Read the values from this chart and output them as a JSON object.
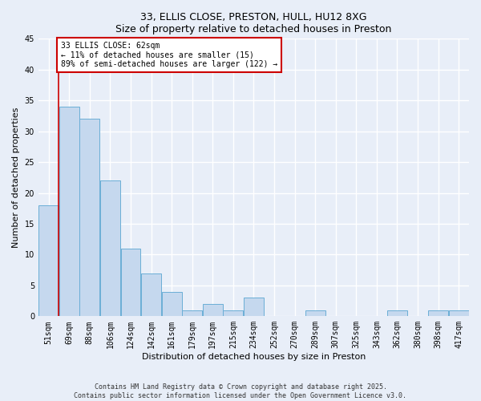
{
  "title1": "33, ELLIS CLOSE, PRESTON, HULL, HU12 8XG",
  "title2": "Size of property relative to detached houses in Preston",
  "xlabel": "Distribution of detached houses by size in Preston",
  "ylabel": "Number of detached properties",
  "categories": [
    "51sqm",
    "69sqm",
    "88sqm",
    "106sqm",
    "124sqm",
    "142sqm",
    "161sqm",
    "179sqm",
    "197sqm",
    "215sqm",
    "234sqm",
    "252sqm",
    "270sqm",
    "289sqm",
    "307sqm",
    "325sqm",
    "343sqm",
    "362sqm",
    "380sqm",
    "398sqm",
    "417sqm"
  ],
  "values": [
    18,
    34,
    32,
    22,
    11,
    7,
    4,
    1,
    2,
    1,
    3,
    0,
    0,
    1,
    0,
    0,
    0,
    1,
    0,
    1,
    1
  ],
  "bar_color": "#c5d8ee",
  "bar_edgecolor": "#6aaed6",
  "ylim": [
    0,
    45
  ],
  "yticks": [
    0,
    5,
    10,
    15,
    20,
    25,
    30,
    35,
    40,
    45
  ],
  "annotation_text": "33 ELLIS CLOSE: 62sqm\n← 11% of detached houses are smaller (15)\n89% of semi-detached houses are larger (122) →",
  "annotation_box_color": "#ffffff",
  "annotation_box_edgecolor": "#cc0000",
  "vline_color": "#cc0000",
  "footnote1": "Contains HM Land Registry data © Crown copyright and database right 2025.",
  "footnote2": "Contains public sector information licensed under the Open Government Licence v3.0.",
  "background_color": "#e8eef8",
  "grid_color": "#ffffff",
  "title_fontsize": 9,
  "axis_label_fontsize": 8,
  "tick_fontsize": 7,
  "annotation_fontsize": 7,
  "footnote_fontsize": 6
}
